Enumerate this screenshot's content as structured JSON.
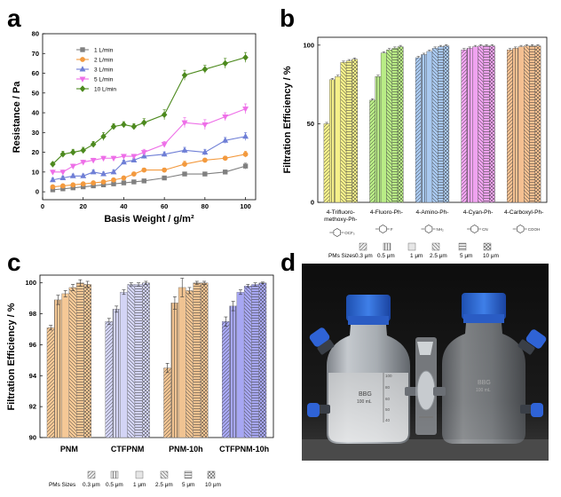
{
  "colors": {
    "s1": "#808080",
    "s2": "#f39a3f",
    "s3": "#6f7fd6",
    "s4": "#ee6fe8",
    "s5": "#4d8a1e",
    "b_cat": [
      "#f5f08a",
      "#b9ec86",
      "#a9c9f0",
      "#f0a3f0",
      "#f5c091"
    ],
    "c_cat": [
      "#f5c896",
      "#d3d4f5",
      "#f0c392",
      "#a7a7f3"
    ]
  },
  "chart_data": [
    {
      "panel": "a",
      "type": "line",
      "title": "",
      "xlabel": "Basis Weight / g/m²",
      "ylabel": "Resistance / Pa",
      "xlim": [
        0,
        105
      ],
      "ylim": [
        -4,
        80
      ],
      "xticks": [
        0,
        20,
        40,
        60,
        80,
        100
      ],
      "yticks": [
        0,
        10,
        20,
        30,
        40,
        50,
        60,
        70,
        80
      ],
      "x": [
        5,
        10,
        15,
        20,
        25,
        30,
        35,
        40,
        45,
        50,
        60,
        70,
        80,
        90,
        100
      ],
      "series": [
        {
          "name": "1 L/min",
          "marker": "square",
          "values": [
            1,
            1.5,
            2,
            2.5,
            3,
            3.5,
            4,
            4.5,
            5,
            5.5,
            7,
            9,
            9,
            10,
            13
          ],
          "errors": [
            0.5,
            0.5,
            0.5,
            0.5,
            0.5,
            0.5,
            0.5,
            0.5,
            0.5,
            0.5,
            0.8,
            1,
            1,
            1,
            1.5
          ]
        },
        {
          "name": "2 L/min",
          "marker": "circle",
          "values": [
            2.5,
            3,
            3.5,
            4,
            4.5,
            5,
            6,
            7,
            9,
            11,
            11,
            14,
            16,
            17,
            19
          ],
          "errors": [
            0.6,
            0.6,
            0.6,
            0.6,
            0.6,
            0.6,
            0.8,
            0.8,
            1,
            1,
            1,
            1.5,
            1,
            1,
            1.5
          ]
        },
        {
          "name": "3 L/min",
          "marker": "triangle",
          "values": [
            6,
            7,
            8,
            8,
            10,
            9,
            10,
            15,
            16,
            18,
            19,
            21,
            20,
            26,
            28
          ],
          "errors": [
            1,
            1,
            1,
            1,
            1,
            1,
            1,
            1,
            1,
            1.2,
            1.2,
            1.5,
            1.5,
            1.5,
            2
          ]
        },
        {
          "name": "5 L/min",
          "marker": "triangle-down",
          "values": [
            10,
            10,
            13,
            15,
            16,
            17,
            17,
            18,
            18,
            20,
            24,
            35,
            34,
            38,
            42
          ],
          "errors": [
            1,
            1,
            1,
            1,
            1,
            1,
            1,
            1,
            1,
            1.5,
            1.5,
            2.5,
            2.5,
            2,
            2.5
          ]
        },
        {
          "name": "10 L/min",
          "marker": "diamond",
          "values": [
            14,
            19,
            20,
            21,
            24,
            28,
            33,
            34,
            33,
            35,
            39,
            59,
            62,
            65,
            68
          ],
          "errors": [
            1,
            1.5,
            1.5,
            1.5,
            1.5,
            2,
            1.5,
            1.5,
            1.5,
            2,
            2.5,
            2.5,
            2,
            2.5,
            2.5
          ]
        }
      ],
      "legend_position": "top-left"
    },
    {
      "panel": "b",
      "type": "bar",
      "title": "",
      "xlabel": "",
      "ylabel": "Filtration Efficiency / %",
      "ylim": [
        0,
        105
      ],
      "yticks": [
        0,
        50,
        100
      ],
      "categories": [
        "4-Trifluoro-methoxy-Ph-",
        "4-Fluoro-Ph-",
        "4-Amino-Ph-",
        "4-Cyan-Ph-",
        "4-Carboxyl-Ph-"
      ],
      "category_lines": [
        [
          "4-Trifluoro-",
          "methoxy-Ph-"
        ],
        [
          "4-Fluoro-Ph-"
        ],
        [
          "4-Amino-Ph-"
        ],
        [
          "4-Cyan-Ph-"
        ],
        [
          "4-Carboxyl-Ph-"
        ]
      ],
      "substituents": [
        "OCF₃",
        "F",
        "NH₂",
        "CN",
        "COOH"
      ],
      "series": [
        {
          "name": "0.3 μm",
          "values": [
            50,
            65,
            92,
            97,
            97
          ]
        },
        {
          "name": "0.5 μm",
          "values": [
            78,
            80,
            94,
            98,
            98
          ]
        },
        {
          "name": "1 μm",
          "values": [
            80,
            95,
            96,
            99,
            99
          ]
        },
        {
          "name": "2.5 μm",
          "values": [
            89,
            97,
            98,
            99.5,
            99.5
          ]
        },
        {
          "name": "5 μm",
          "values": [
            90,
            98,
            99,
            99.5,
            99.5
          ]
        },
        {
          "name": "10 μm",
          "values": [
            91,
            99,
            99.5,
            99.5,
            99.5
          ]
        }
      ],
      "legend_title": "PMs Sizes",
      "legend_position": "bottom"
    },
    {
      "panel": "c",
      "type": "bar",
      "title": "",
      "xlabel": "",
      "ylabel": "Filtration Efficiency / %",
      "ylim": [
        90,
        100.5
      ],
      "yticks": [
        90,
        92,
        94,
        96,
        98,
        100
      ],
      "categories": [
        "PNM",
        "CTFPNM",
        "PNM-10h",
        "CTFPNM-10h"
      ],
      "series": [
        {
          "name": "0.3 μm",
          "values": [
            97.1,
            97.5,
            94.5,
            97.5
          ],
          "errors": [
            0.15,
            0.2,
            0.3,
            0.3
          ]
        },
        {
          "name": "0.5 μm",
          "values": [
            98.9,
            98.3,
            98.7,
            98.5
          ],
          "errors": [
            0.3,
            0.2,
            0.4,
            0.3
          ]
        },
        {
          "name": "1 μm",
          "values": [
            99.3,
            99.4,
            99.7,
            99.4
          ],
          "errors": [
            0.2,
            0.15,
            0.6,
            0.15
          ]
        },
        {
          "name": "2.5 μm",
          "values": [
            99.7,
            99.9,
            99.5,
            99.8
          ],
          "errors": [
            0.2,
            0.1,
            0.2,
            0.1
          ]
        },
        {
          "name": "5 μm",
          "values": [
            100,
            99.9,
            100,
            99.9
          ],
          "errors": [
            0.2,
            0.1,
            0.1,
            0.1
          ]
        },
        {
          "name": "10 μm",
          "values": [
            99.9,
            100,
            100,
            100
          ],
          "errors": [
            0.2,
            0.1,
            0.1,
            0.05
          ]
        }
      ],
      "legend_title": "PMs Sizes",
      "legend_position": "bottom"
    }
  ],
  "panels": {
    "a": {
      "letter": "a"
    },
    "b": {
      "letter": "b"
    },
    "c": {
      "letter": "c"
    },
    "d": {
      "letter": "d"
    }
  },
  "photo": {
    "left_bottle": {
      "brand": "BBG",
      "volume": "100 mL",
      "scale": [
        "100",
        "80",
        "60",
        "50",
        "40"
      ]
    },
    "right_bottle": {
      "brand": "BBG",
      "volume": "100 mL"
    }
  }
}
